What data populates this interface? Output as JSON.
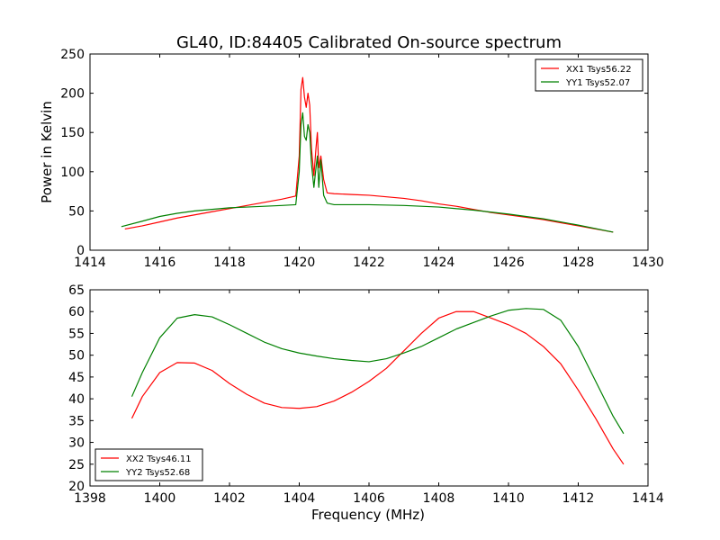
{
  "title": "GL40, ID:84405 Calibrated On-source spectrum",
  "chart_data": [
    {
      "type": "line",
      "ylabel": "Power in Kelvin",
      "xlabel": "",
      "xlim": [
        1414,
        1430
      ],
      "ylim": [
        0,
        250
      ],
      "xticks": [
        1414,
        1416,
        1418,
        1420,
        1422,
        1424,
        1426,
        1428,
        1430
      ],
      "yticks": [
        0,
        50,
        100,
        150,
        200,
        250
      ],
      "grid": false,
      "legend_position": "top-right",
      "series": [
        {
          "name": "XX1 Tsys56.22",
          "color": "#ff0000",
          "points": [
            [
              1415.0,
              27
            ],
            [
              1415.5,
              31
            ],
            [
              1416.0,
              36
            ],
            [
              1416.5,
              41
            ],
            [
              1417.0,
              45
            ],
            [
              1417.5,
              49
            ],
            [
              1418.0,
              53
            ],
            [
              1418.5,
              57
            ],
            [
              1419.0,
              61
            ],
            [
              1419.5,
              65
            ],
            [
              1419.9,
              69
            ],
            [
              1420.0,
              120
            ],
            [
              1420.05,
              205
            ],
            [
              1420.1,
              220
            ],
            [
              1420.15,
              195
            ],
            [
              1420.2,
              182
            ],
            [
              1420.25,
              200
            ],
            [
              1420.3,
              185
            ],
            [
              1420.35,
              130
            ],
            [
              1420.42,
              95
            ],
            [
              1420.48,
              130
            ],
            [
              1420.52,
              150
            ],
            [
              1420.56,
              105
            ],
            [
              1420.62,
              120
            ],
            [
              1420.7,
              90
            ],
            [
              1420.8,
              73
            ],
            [
              1421.0,
              72
            ],
            [
              1421.5,
              71
            ],
            [
              1422.0,
              70
            ],
            [
              1422.5,
              68
            ],
            [
              1423.0,
              66
            ],
            [
              1423.5,
              63
            ],
            [
              1424.0,
              59
            ],
            [
              1424.5,
              56
            ],
            [
              1425.0,
              52
            ],
            [
              1425.5,
              48
            ],
            [
              1426.0,
              45
            ],
            [
              1426.5,
              42
            ],
            [
              1427.0,
              39
            ],
            [
              1427.5,
              35
            ],
            [
              1428.0,
              31
            ],
            [
              1428.5,
              27
            ],
            [
              1429.0,
              23
            ]
          ]
        },
        {
          "name": "YY1 Tsys52.07",
          "color": "#008000",
          "points": [
            [
              1414.9,
              30
            ],
            [
              1415.5,
              37
            ],
            [
              1416.0,
              43
            ],
            [
              1416.5,
              47
            ],
            [
              1417.0,
              50
            ],
            [
              1417.5,
              52
            ],
            [
              1418.0,
              54
            ],
            [
              1418.5,
              55
            ],
            [
              1419.0,
              56
            ],
            [
              1419.5,
              57
            ],
            [
              1419.9,
              58
            ],
            [
              1420.0,
              100
            ],
            [
              1420.05,
              160
            ],
            [
              1420.1,
              175
            ],
            [
              1420.15,
              145
            ],
            [
              1420.2,
              140
            ],
            [
              1420.25,
              160
            ],
            [
              1420.3,
              150
            ],
            [
              1420.35,
              110
            ],
            [
              1420.42,
              80
            ],
            [
              1420.48,
              105
            ],
            [
              1420.52,
              120
            ],
            [
              1420.56,
              80
            ],
            [
              1420.62,
              115
            ],
            [
              1420.7,
              70
            ],
            [
              1420.8,
              60
            ],
            [
              1421.0,
              58
            ],
            [
              1422.0,
              58
            ],
            [
              1423.0,
              57
            ],
            [
              1424.0,
              55
            ],
            [
              1425.0,
              51
            ],
            [
              1426.0,
              46
            ],
            [
              1427.0,
              40
            ],
            [
              1428.0,
              32
            ],
            [
              1429.0,
              23
            ]
          ]
        }
      ]
    },
    {
      "type": "line",
      "xlabel": "Frequency (MHz)",
      "ylabel": "",
      "xlim": [
        1398,
        1414
      ],
      "ylim": [
        20,
        65
      ],
      "xticks": [
        1398,
        1400,
        1402,
        1404,
        1406,
        1408,
        1410,
        1412,
        1414
      ],
      "yticks": [
        20,
        25,
        30,
        35,
        40,
        45,
        50,
        55,
        60,
        65
      ],
      "grid": false,
      "legend_position": "bottom-left",
      "series": [
        {
          "name": "XX2 Tsys46.11",
          "color": "#ff0000",
          "points": [
            [
              1399.2,
              35.5
            ],
            [
              1399.5,
              40.5
            ],
            [
              1400.0,
              46
            ],
            [
              1400.5,
              48.3
            ],
            [
              1401.0,
              48.2
            ],
            [
              1401.5,
              46.5
            ],
            [
              1402.0,
              43.5
            ],
            [
              1402.5,
              41
            ],
            [
              1403.0,
              39
            ],
            [
              1403.5,
              38
            ],
            [
              1404.0,
              37.8
            ],
            [
              1404.5,
              38.2
            ],
            [
              1405.0,
              39.5
            ],
            [
              1405.5,
              41.5
            ],
            [
              1406.0,
              44
            ],
            [
              1406.5,
              47
            ],
            [
              1407.0,
              51
            ],
            [
              1407.5,
              55
            ],
            [
              1408.0,
              58.5
            ],
            [
              1408.5,
              60
            ],
            [
              1409.0,
              60
            ],
            [
              1409.5,
              58.5
            ],
            [
              1410.0,
              57
            ],
            [
              1410.5,
              55
            ],
            [
              1411.0,
              52
            ],
            [
              1411.5,
              48
            ],
            [
              1412.0,
              42
            ],
            [
              1412.5,
              35.5
            ],
            [
              1413.0,
              28.5
            ],
            [
              1413.3,
              25
            ]
          ]
        },
        {
          "name": "YY2 Tsys52.68",
          "color": "#008000",
          "points": [
            [
              1399.2,
              40.5
            ],
            [
              1399.5,
              46
            ],
            [
              1400.0,
              54
            ],
            [
              1400.5,
              58.5
            ],
            [
              1401.0,
              59.3
            ],
            [
              1401.5,
              58.8
            ],
            [
              1402.0,
              57
            ],
            [
              1402.5,
              55
            ],
            [
              1403.0,
              53
            ],
            [
              1403.5,
              51.5
            ],
            [
              1404.0,
              50.5
            ],
            [
              1404.5,
              49.8
            ],
            [
              1405.0,
              49.2
            ],
            [
              1405.5,
              48.8
            ],
            [
              1406.0,
              48.5
            ],
            [
              1406.5,
              49.2
            ],
            [
              1407.0,
              50.5
            ],
            [
              1407.5,
              52
            ],
            [
              1408.0,
              54
            ],
            [
              1408.5,
              56
            ],
            [
              1409.0,
              57.5
            ],
            [
              1409.5,
              59
            ],
            [
              1410.0,
              60.3
            ],
            [
              1410.5,
              60.7
            ],
            [
              1411.0,
              60.5
            ],
            [
              1411.5,
              58
            ],
            [
              1412.0,
              52
            ],
            [
              1412.5,
              44
            ],
            [
              1413.0,
              36
            ],
            [
              1413.3,
              32
            ]
          ]
        }
      ]
    }
  ]
}
